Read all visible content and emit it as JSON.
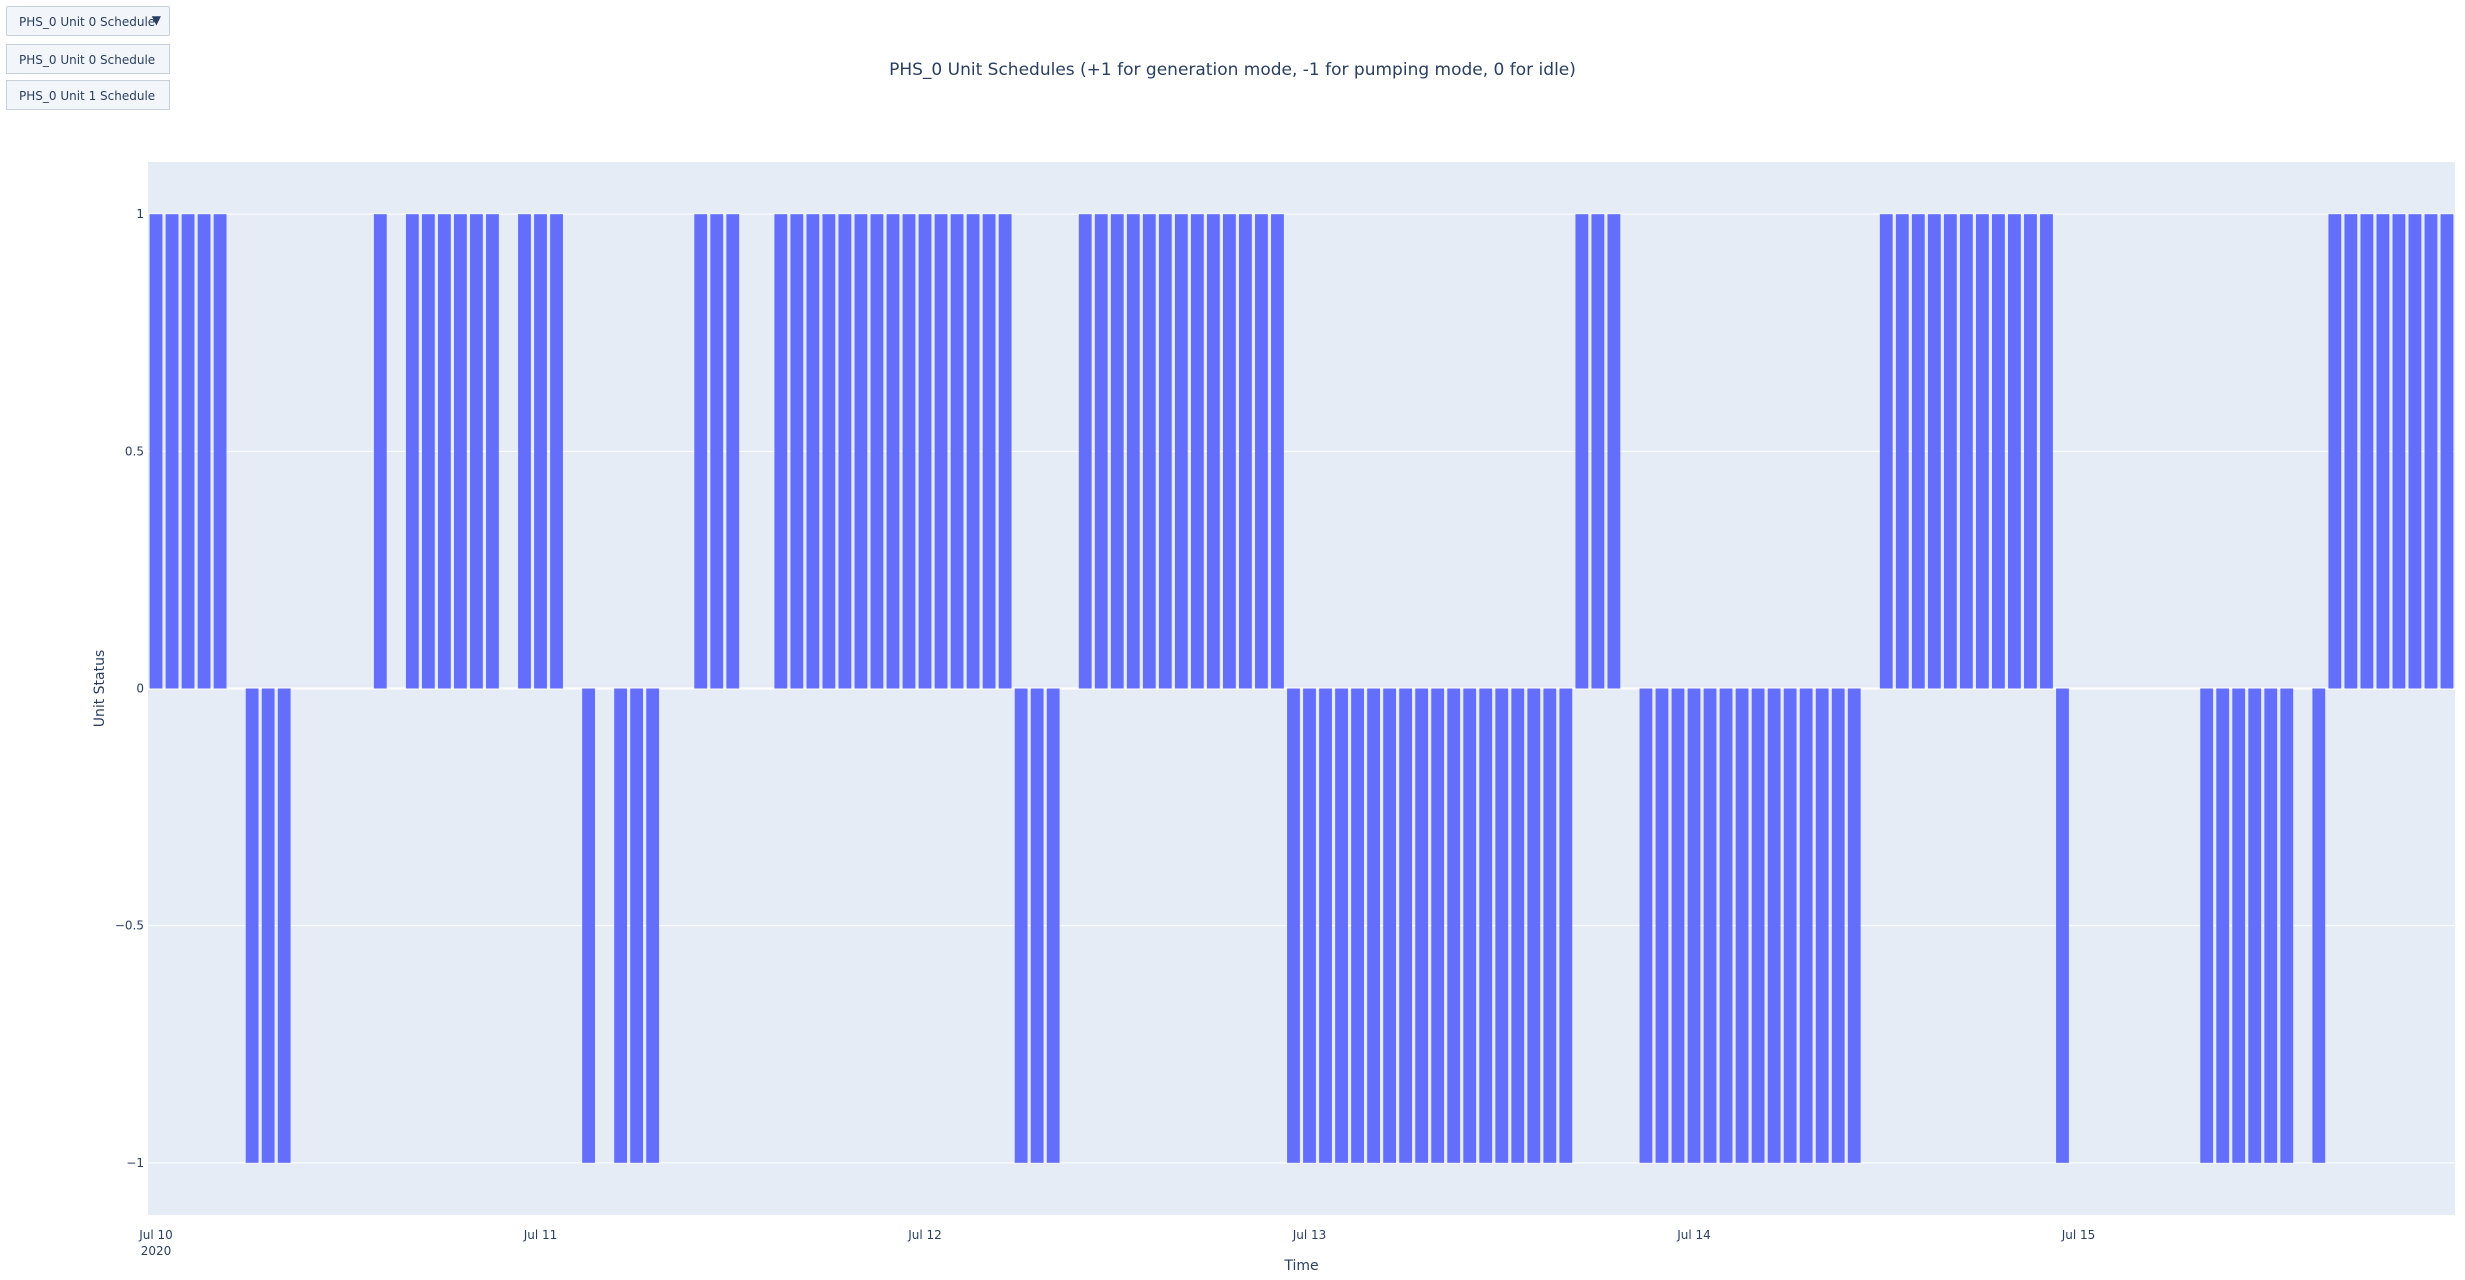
{
  "dropdown": {
    "selected": "PHS_0 Unit 0 Schedule",
    "options": [
      "PHS_0 Unit 0 Schedule",
      "PHS_0 Unit 1 Schedule"
    ]
  },
  "colors": {
    "bar": "#636efa",
    "plot_bg": "#e5ecf6",
    "grid": "#ffffff"
  },
  "chart_data": {
    "type": "bar",
    "title": "PHS_0 Unit Schedules (+1 for generation mode, -1 for pumping mode, 0 for idle)",
    "xlabel": "Time",
    "ylabel": "Unit Status",
    "x_start": "2020-07-10T00:00",
    "x_end": "2020-07-15T23:00",
    "bar_interval": "1 hour",
    "ylim": [
      -1.11,
      1.11
    ],
    "yticks": [
      {
        "value": 1,
        "label": "1"
      },
      {
        "value": 0.5,
        "label": "0.5"
      },
      {
        "value": 0,
        "label": "0"
      },
      {
        "value": -0.5,
        "label": "−0.5"
      },
      {
        "value": -1,
        "label": "−1"
      }
    ],
    "xticks": [
      {
        "value": "2020-07-10",
        "label": "Jul 10",
        "sublabel": "2020"
      },
      {
        "value": "2020-07-11",
        "label": "Jul 11"
      },
      {
        "value": "2020-07-12",
        "label": "Jul 12"
      },
      {
        "value": "2020-07-13",
        "label": "Jul 13"
      },
      {
        "value": "2020-07-14",
        "label": "Jul 14"
      },
      {
        "value": "2020-07-15",
        "label": "Jul 15"
      }
    ],
    "series": [
      {
        "values": [
          1,
          1,
          1,
          1,
          1,
          0,
          -1,
          -1,
          -1,
          0,
          0,
          0,
          0,
          0,
          1,
          0,
          1,
          1,
          1,
          1,
          1,
          1,
          0,
          1,
          1,
          1,
          0,
          -1,
          0,
          -1,
          -1,
          -1,
          0,
          0,
          1,
          1,
          1,
          0,
          0,
          1,
          1,
          1,
          1,
          1,
          1,
          1,
          1,
          1,
          1,
          1,
          1,
          1,
          1,
          1,
          -1,
          -1,
          -1,
          0,
          1,
          1,
          1,
          1,
          1,
          1,
          1,
          1,
          1,
          1,
          1,
          1,
          1,
          -1,
          -1,
          -1,
          -1,
          -1,
          -1,
          -1,
          -1,
          -1,
          -1,
          -1,
          -1,
          -1,
          -1,
          -1,
          -1,
          -1,
          -1,
          1,
          1,
          1,
          0,
          -1,
          -1,
          -1,
          -1,
          -1,
          -1,
          -1,
          -1,
          -1,
          -1,
          -1,
          -1,
          -1,
          -1,
          0,
          1,
          1,
          1,
          1,
          1,
          1,
          1,
          1,
          1,
          1,
          1,
          -1,
          0,
          0,
          0,
          0,
          0,
          0,
          0,
          0,
          -1,
          -1,
          -1,
          -1,
          -1,
          -1,
          0,
          -1,
          1,
          1,
          1,
          1,
          1,
          1,
          1,
          1
        ]
      }
    ]
  }
}
